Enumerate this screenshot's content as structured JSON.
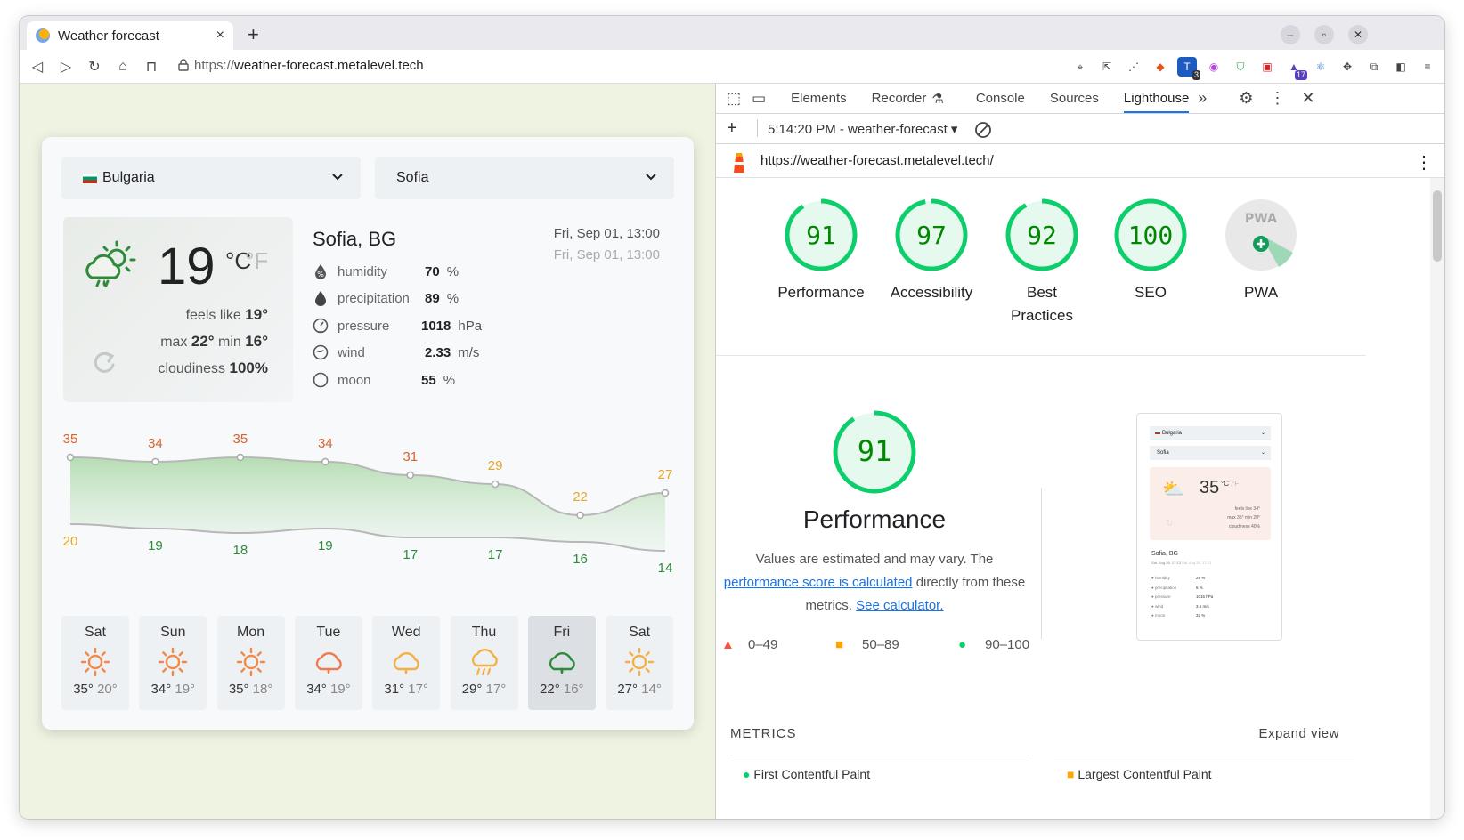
{
  "browser": {
    "tab_title": "Weather forecast",
    "url_scheme": "https://",
    "url_host": "weather-forecast.metalevel.tech",
    "new_tab": "+",
    "tab_close": "×"
  },
  "weather": {
    "country": "Bulgaria",
    "city_select": "Sofia",
    "current": {
      "temp": "19",
      "unit_c": "°C",
      "unit_f": "°F",
      "feels_like_label": "feels like",
      "feels_like": "19°",
      "max_label": "max",
      "max": "22°",
      "min_label": "min",
      "min": "16°",
      "cloudiness_label": "cloudiness",
      "cloudiness": "100%"
    },
    "location": "Sofia, BG",
    "date_local": "Fri, Sep 01, 13:00",
    "date_remote": "Fri, Sep 01, 13:00",
    "details": [
      {
        "label": "humidity",
        "value": "70",
        "unit": "%"
      },
      {
        "label": "precipitation",
        "value": "89",
        "unit": "%"
      },
      {
        "label": "pressure",
        "value": "1018",
        "unit": "hPa"
      },
      {
        "label": "wind",
        "value": "2.33",
        "unit": "m/s"
      },
      {
        "label": "moon",
        "value": "55",
        "unit": "%"
      }
    ],
    "accent": "#2e8b3a",
    "warm": "#e0792c"
  },
  "chart_data": {
    "type": "area",
    "categories": [
      "Sat",
      "Sun",
      "Mon",
      "Tue",
      "Wed",
      "Thu",
      "Fri",
      "Sat"
    ],
    "series": [
      {
        "values": [
          35,
          34,
          35,
          34,
          31,
          29,
          22,
          27
        ]
      },
      {
        "values": [
          20,
          19,
          18,
          19,
          17,
          17,
          16,
          14
        ]
      }
    ],
    "ylim": [
      10,
      40
    ]
  },
  "forecast": [
    {
      "day": "Sat",
      "max": "35°",
      "min": "20°",
      "icon": "sun-icon"
    },
    {
      "day": "Sun",
      "max": "34°",
      "min": "19°",
      "icon": "sun-icon"
    },
    {
      "day": "Mon",
      "max": "35°",
      "min": "18°",
      "icon": "sun-icon"
    },
    {
      "day": "Tue",
      "max": "34°",
      "min": "19°",
      "icon": "cloud-rain-icon"
    },
    {
      "day": "Wed",
      "max": "31°",
      "min": "17°",
      "icon": "cloud-rain-icon"
    },
    {
      "day": "Thu",
      "max": "29°",
      "min": "17°",
      "icon": "cloud-heavy-rain-icon"
    },
    {
      "day": "Fri",
      "max": "22°",
      "min": "16°",
      "icon": "cloud-rain-icon"
    },
    {
      "day": "Sat",
      "max": "27°",
      "min": "14°",
      "icon": "sun-icon"
    }
  ],
  "devtools": {
    "tabs": [
      "Elements",
      "Recorder",
      "Console",
      "Sources",
      "Lighthouse"
    ],
    "report_select": "5:14:20 PM - weather-forecast",
    "report_url": "https://weather-forecast.metalevel.tech/",
    "scores": [
      {
        "label": "Performance",
        "value": 91
      },
      {
        "label": "Accessibility",
        "value": 97
      },
      {
        "label": "Best Practices",
        "value": 92
      },
      {
        "label": "SEO",
        "value": 100
      }
    ],
    "pwa_label": "PWA",
    "pwa_badge": "PWA",
    "perf_score": "91",
    "perf_title": "Performance",
    "perf_desc_1": "Values are estimated and may vary. The",
    "perf_link_1": "performance score is calculated",
    "perf_desc_2": "directly from these",
    "perf_desc_3": "metrics.",
    "perf_link_2": "See calculator.",
    "legend": [
      "0–49",
      "50–89",
      "90–100"
    ],
    "metrics_label": "METRICS",
    "expand_label": "Expand view",
    "metric_1": "First Contentful Paint",
    "metric_2": "Largest Contentful Paint",
    "good_color": "#0cce6b",
    "avg_color": "#ffa400",
    "bad_color": "#ff4e42",
    "thumbnail": {
      "country": "Bulgaria",
      "city": "Sofia",
      "temp": "35",
      "unit": "°C",
      "unit_f": "°F",
      "feels": "feels like 34°",
      "maxmin": "max 35° min 20°",
      "cloud": "cloudiness 40%",
      "location": "Sofia, BG",
      "date": "Sat, Aug 26, 17:13",
      "date2": "Sat, Aug 26, 17:13",
      "rows": [
        {
          "label": "humidity",
          "value": "29 %"
        },
        {
          "label": "precipitation",
          "value": "5 %"
        },
        {
          "label": "pressure",
          "value": "1016 hPa"
        },
        {
          "label": "wind",
          "value": "3.6 m/s"
        },
        {
          "label": "moon",
          "value": "32 %"
        }
      ]
    }
  },
  "extensions": {
    "badge_1": "3",
    "badge_2": "17"
  }
}
